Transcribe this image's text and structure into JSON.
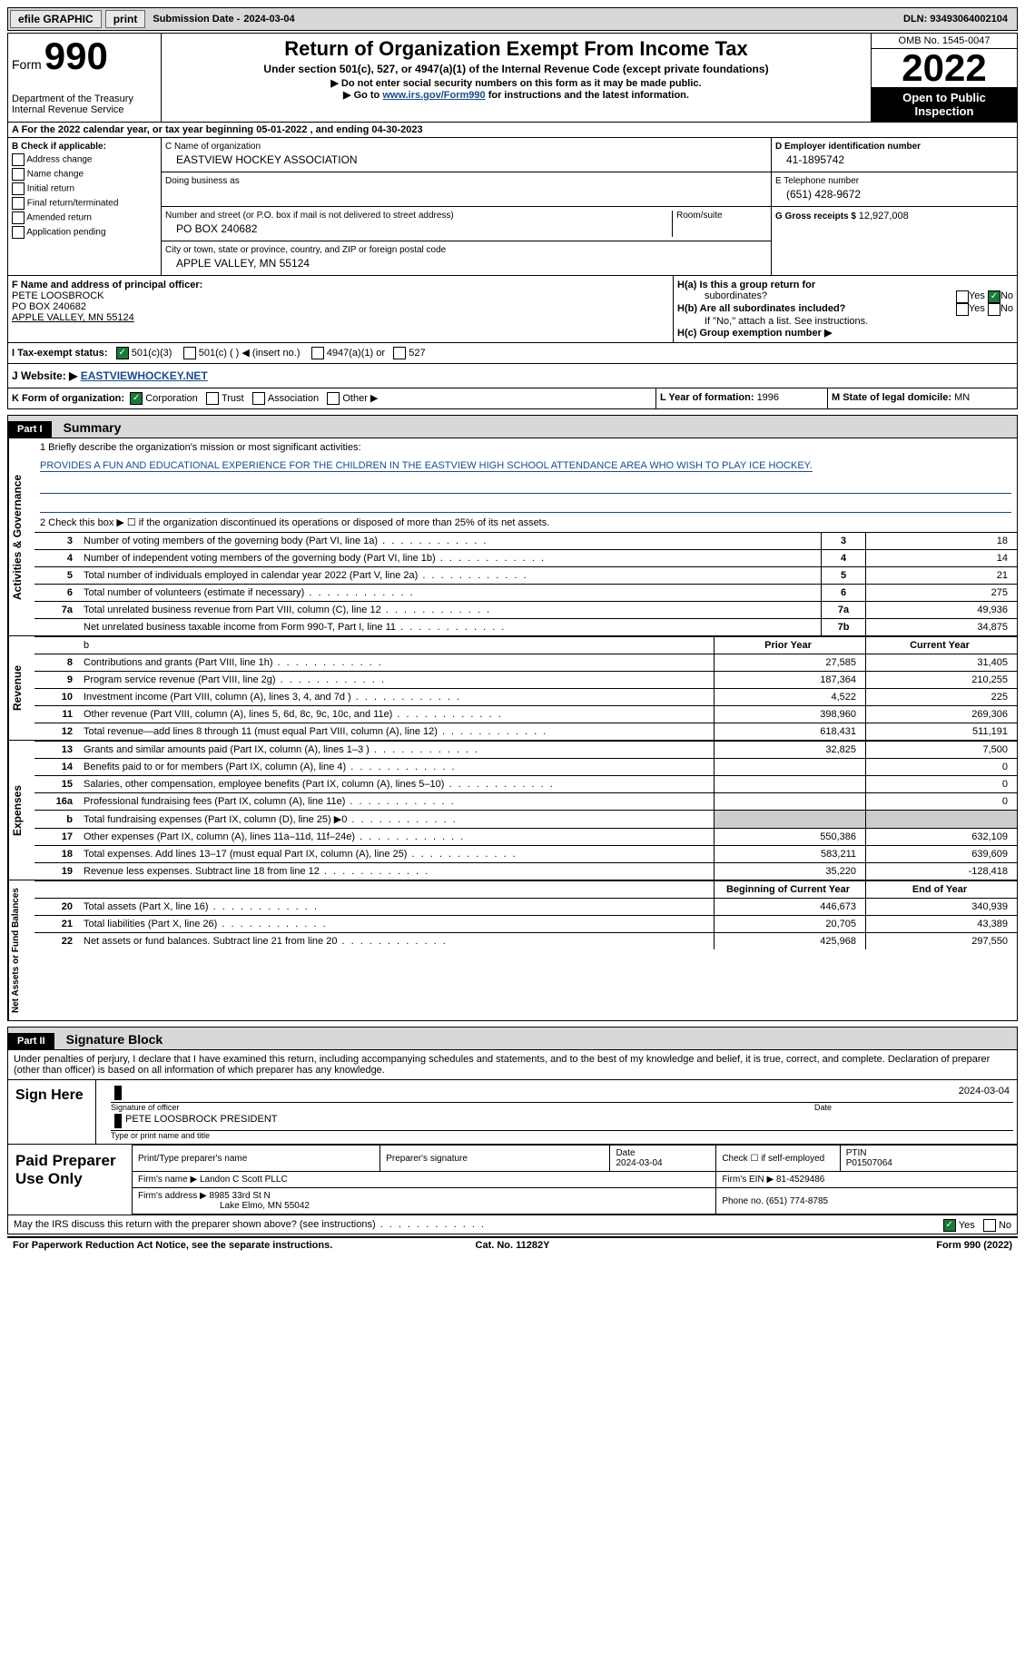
{
  "topbar": {
    "efile": "efile GRAPHIC",
    "print": "print",
    "subdate_label": "Submission Date - ",
    "subdate": "2024-03-04",
    "dln_label": "DLN: ",
    "dln": "93493064002104"
  },
  "header": {
    "form_word": "Form",
    "form_num": "990",
    "dept": "Department of the Treasury",
    "irs": "Internal Revenue Service",
    "title": "Return of Organization Exempt From Income Tax",
    "sub": "Under section 501(c), 527, or 4947(a)(1) of the Internal Revenue Code (except private foundations)",
    "note1": "▶ Do not enter social security numbers on this form as it may be made public.",
    "note2_pre": "▶ Go to ",
    "note2_link": "www.irs.gov/Form990",
    "note2_post": " for instructions and the latest information.",
    "omb": "OMB No. 1545-0047",
    "year": "2022",
    "open": "Open to Public Inspection"
  },
  "rowA": "A For the 2022 calendar year, or tax year beginning 05-01-2022    , and ending 04-30-2023",
  "colB": {
    "hdr": "B Check if applicable:",
    "items": [
      "Address change",
      "Name change",
      "Initial return",
      "Final return/terminated",
      "Amended return",
      "Application pending"
    ]
  },
  "colC": {
    "name_label": "C Name of organization",
    "name": "EASTVIEW HOCKEY ASSOCIATION",
    "dba_label": "Doing business as",
    "addr_label": "Number and street (or P.O. box if mail is not delivered to street address)",
    "room_label": "Room/suite",
    "addr": "PO BOX 240682",
    "city_label": "City or town, state or province, country, and ZIP or foreign postal code",
    "city": "APPLE VALLEY, MN  55124"
  },
  "colD": {
    "ein_label": "D Employer identification number",
    "ein": "41-1895742",
    "tel_label": "E Telephone number",
    "tel": "(651) 428-9672",
    "gross_label": "G Gross receipts $ ",
    "gross": "12,927,008"
  },
  "rowF": {
    "label": "F Name and address of principal officer:",
    "name": "PETE LOOSBROCK",
    "addr1": "PO BOX 240682",
    "addr2": "APPLE VALLEY, MN  55124"
  },
  "rowH": {
    "a": "H(a)  Is this a group return for",
    "a2": "subordinates?",
    "b": "H(b)  Are all subordinates included?",
    "bnote": "If \"No,\" attach a list. See instructions.",
    "c": "H(c)  Group exemption number ▶",
    "yes": "Yes",
    "no": "No"
  },
  "rowI": {
    "label": "I    Tax-exempt status:",
    "o1": "501(c)(3)",
    "o2": "501(c) (  ) ◀ (insert no.)",
    "o3": "4947(a)(1) or",
    "o4": "527"
  },
  "rowJ": {
    "label": "J   Website: ▶  ",
    "val": "EASTVIEWHOCKEY.NET"
  },
  "rowK": {
    "label": "K Form of organization:",
    "opts": [
      "Corporation",
      "Trust",
      "Association",
      "Other ▶"
    ],
    "l": "L Year of formation: ",
    "lval": "1996",
    "m": "M State of legal domicile: ",
    "mval": "MN"
  },
  "part1": {
    "tag": "Part I",
    "title": "Summary",
    "tab1": "Activities & Governance",
    "tab2": "Revenue",
    "tab3": "Expenses",
    "tab4": "Net Assets or Fund Balances",
    "l1a": "1   Briefly describe the organization's mission or most significant activities:",
    "l1b": "PROVIDES A FUN AND EDUCATIONAL EXPERIENCE FOR THE CHILDREN IN THE EASTVIEW HIGH SCHOOL ATTENDANCE AREA WHO WISH TO PLAY ICE HOCKEY.",
    "l2": "2   Check this box ▶ ☐ if the organization discontinued its operations or disposed of more than 25% of its net assets.",
    "rows_ag": [
      {
        "n": "3",
        "t": "Number of voting members of the governing body (Part VI, line 1a)",
        "b": "3",
        "v": "18"
      },
      {
        "n": "4",
        "t": "Number of independent voting members of the governing body (Part VI, line 1b)",
        "b": "4",
        "v": "14"
      },
      {
        "n": "5",
        "t": "Total number of individuals employed in calendar year 2022 (Part V, line 2a)",
        "b": "5",
        "v": "21"
      },
      {
        "n": "6",
        "t": "Total number of volunteers (estimate if necessary)",
        "b": "6",
        "v": "275"
      },
      {
        "n": "7a",
        "t": "Total unrelated business revenue from Part VIII, column (C), line 12",
        "b": "7a",
        "v": "49,936"
      },
      {
        "n": "",
        "t": "Net unrelated business taxable income from Form 990-T, Part I, line 11",
        "b": "7b",
        "v": "34,875"
      }
    ],
    "hdr_prior": "Prior Year",
    "hdr_curr": "Current Year",
    "rows_rev": [
      {
        "n": "8",
        "t": "Contributions and grants (Part VIII, line 1h)",
        "p": "27,585",
        "c": "31,405"
      },
      {
        "n": "9",
        "t": "Program service revenue (Part VIII, line 2g)",
        "p": "187,364",
        "c": "210,255"
      },
      {
        "n": "10",
        "t": "Investment income (Part VIII, column (A), lines 3, 4, and 7d )",
        "p": "4,522",
        "c": "225"
      },
      {
        "n": "11",
        "t": "Other revenue (Part VIII, column (A), lines 5, 6d, 8c, 9c, 10c, and 11e)",
        "p": "398,960",
        "c": "269,306"
      },
      {
        "n": "12",
        "t": "Total revenue—add lines 8 through 11 (must equal Part VIII, column (A), line 12)",
        "p": "618,431",
        "c": "511,191"
      }
    ],
    "rows_exp": [
      {
        "n": "13",
        "t": "Grants and similar amounts paid (Part IX, column (A), lines 1–3 )",
        "p": "32,825",
        "c": "7,500"
      },
      {
        "n": "14",
        "t": "Benefits paid to or for members (Part IX, column (A), line 4)",
        "p": "",
        "c": "0"
      },
      {
        "n": "15",
        "t": "Salaries, other compensation, employee benefits (Part IX, column (A), lines 5–10)",
        "p": "",
        "c": "0"
      },
      {
        "n": "16a",
        "t": "Professional fundraising fees (Part IX, column (A), line 11e)",
        "p": "",
        "c": "0"
      },
      {
        "n": "b",
        "t": "Total fundraising expenses (Part IX, column (D), line 25) ▶0",
        "p": "__SHADE__",
        "c": "__SHADE__"
      },
      {
        "n": "17",
        "t": "Other expenses (Part IX, column (A), lines 11a–11d, 11f–24e)",
        "p": "550,386",
        "c": "632,109"
      },
      {
        "n": "18",
        "t": "Total expenses. Add lines 13–17 (must equal Part IX, column (A), line 25)",
        "p": "583,211",
        "c": "639,609"
      },
      {
        "n": "19",
        "t": "Revenue less expenses. Subtract line 18 from line 12",
        "p": "35,220",
        "c": "-128,418"
      }
    ],
    "hdr_boy": "Beginning of Current Year",
    "hdr_eoy": "End of Year",
    "rows_net": [
      {
        "n": "20",
        "t": "Total assets (Part X, line 16)",
        "p": "446,673",
        "c": "340,939"
      },
      {
        "n": "21",
        "t": "Total liabilities (Part X, line 26)",
        "p": "20,705",
        "c": "43,389"
      },
      {
        "n": "22",
        "t": "Net assets or fund balances. Subtract line 21 from line 20",
        "p": "425,968",
        "c": "297,550"
      }
    ]
  },
  "part2": {
    "tag": "Part II",
    "title": "Signature Block",
    "decl": "Under penalties of perjury, I declare that I have examined this return, including accompanying schedules and statements, and to the best of my knowledge and belief, it is true, correct, and complete. Declaration of preparer (other than officer) is based on all information of which preparer has any knowledge.",
    "sign_here": "Sign Here",
    "sig_of": "Signature of officer",
    "sig_date": "2024-03-04",
    "date_l": "Date",
    "sig_name": "PETE LOOSBROCK  PRESIDENT",
    "sig_name_l": "Type or print name and title",
    "paid": "Paid Preparer Use Only",
    "pt_name_l": "Print/Type preparer's name",
    "pt_sig_l": "Preparer's signature",
    "pt_date_l": "Date",
    "pt_date": "2024-03-04",
    "pt_self": "Check ☐ if self-employed",
    "ptin_l": "PTIN",
    "ptin": "P01507064",
    "firm_name_l": "Firm's name      ▶ ",
    "firm_name": "Landon C Scott PLLC",
    "firm_ein_l": "Firm's EIN ▶ ",
    "firm_ein": "81-4529486",
    "firm_addr_l": "Firm's address ▶ ",
    "firm_addr1": "8985 33rd St N",
    "firm_addr2": "Lake Elmo, MN  55042",
    "phone_l": "Phone no. ",
    "phone": "(651) 774-8785"
  },
  "bottom": {
    "discuss": "May the IRS discuss this return with the preparer shown above? (see instructions)",
    "yes": "Yes",
    "no": "No",
    "pra": "For Paperwork Reduction Act Notice, see the separate instructions.",
    "cat": "Cat. No. 11282Y",
    "form": "Form 990 (2022)"
  }
}
